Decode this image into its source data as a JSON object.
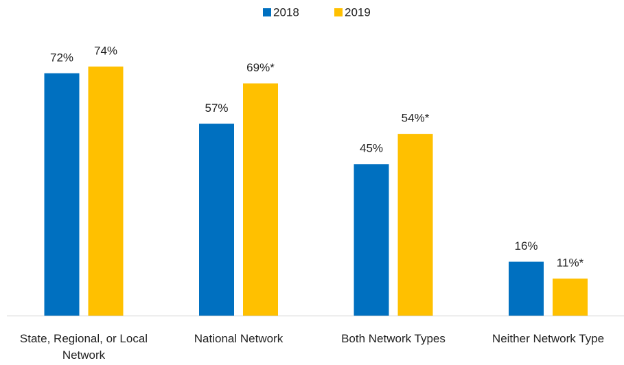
{
  "chart_data": {
    "type": "bar",
    "categories": [
      "State, Regional, or Local Network",
      "National Network",
      "Both Network Types",
      "Neither Network Type"
    ],
    "series": [
      {
        "name": "2018",
        "color": "#0070c0",
        "values": [
          72,
          57,
          45,
          16
        ],
        "value_labels": [
          "72%",
          "57%",
          "45%",
          "16%"
        ]
      },
      {
        "name": "2019",
        "color": "#ffc000",
        "values": [
          74,
          69,
          54,
          11
        ],
        "value_labels": [
          "74%",
          "69%*",
          "54%*",
          "11%*"
        ]
      }
    ],
    "legend": "top"
  }
}
